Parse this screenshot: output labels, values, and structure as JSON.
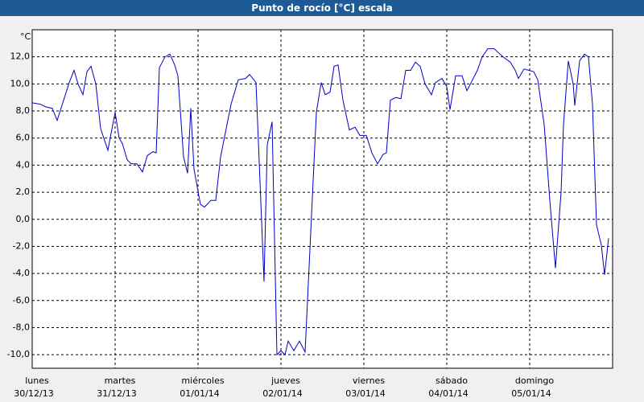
{
  "chart_data": {
    "type": "line",
    "title": "Punto de rocío [°C] escala",
    "y_unit": "°C",
    "color": "#0000c8",
    "grid": true,
    "xlim": [
      0,
      7
    ],
    "xticks": [
      {
        "value": 0,
        "label": [
          "lunes",
          "30/12/13"
        ]
      },
      {
        "value": 1,
        "label": [
          "martes",
          "31/12/13"
        ]
      },
      {
        "value": 2,
        "label": [
          "miércoles",
          "01/01/14"
        ]
      },
      {
        "value": 3,
        "label": [
          "jueves",
          "02/01/14"
        ]
      },
      {
        "value": 4,
        "label": [
          "viernes",
          "03/01/14"
        ]
      },
      {
        "value": 5,
        "label": [
          "sábado",
          "04/01/14"
        ]
      },
      {
        "value": 6,
        "label": [
          "domingo",
          "05/01/14"
        ]
      }
    ],
    "ylim": [
      -11,
      14
    ],
    "yticks": [
      {
        "value": -10,
        "label": "-10,0"
      },
      {
        "value": -8,
        "label": "-8,0"
      },
      {
        "value": -6,
        "label": "-6,0"
      },
      {
        "value": -4,
        "label": "-4,0"
      },
      {
        "value": -2,
        "label": "-2,0"
      },
      {
        "value": 0,
        "label": "0,0"
      },
      {
        "value": 2,
        "label": "2,0"
      },
      {
        "value": 4,
        "label": "4,0"
      },
      {
        "value": 6,
        "label": "6,0"
      },
      {
        "value": 8,
        "label": "8,0"
      },
      {
        "value": 10,
        "label": "10,0"
      },
      {
        "value": 12,
        "label": "12,0"
      }
    ],
    "x": [
      0,
      0.097,
      0.165,
      0.243,
      0.301,
      0.369,
      0.447,
      0.505,
      0.553,
      0.612,
      0.66,
      0.709,
      0.767,
      0.825,
      0.913,
      1.0,
      1.049,
      1.087,
      1.146,
      1.194,
      1.262,
      1.33,
      1.388,
      1.456,
      1.495,
      1.534,
      1.602,
      1.66,
      1.718,
      1.757,
      1.825,
      1.874,
      1.913,
      1.951,
      2.029,
      2.078,
      2.155,
      2.214,
      2.272,
      2.398,
      2.485,
      2.573,
      2.621,
      2.699,
      2.796,
      2.835,
      2.893,
      2.951,
      3.0,
      3.049,
      3.087,
      3.155,
      3.223,
      3.291,
      3.427,
      3.485,
      3.534,
      3.592,
      3.641,
      3.689,
      3.748,
      3.825,
      3.893,
      3.951,
      4.029,
      4.097,
      4.165,
      4.233,
      4.272,
      4.32,
      4.388,
      4.447,
      4.505,
      4.563,
      4.621,
      4.68,
      4.738,
      4.816,
      4.864,
      4.942,
      5.0,
      5.039,
      5.107,
      5.184,
      5.243,
      5.311,
      5.369,
      5.427,
      5.495,
      5.573,
      5.641,
      5.699,
      5.767,
      5.825,
      5.864,
      5.932,
      5.99,
      6.049,
      6.097,
      6.175,
      6.243,
      6.311,
      6.379,
      6.408,
      6.466,
      6.524,
      6.544,
      6.602,
      6.66,
      6.709,
      6.757,
      6.806,
      6.864,
      6.903,
      6.951
    ],
    "values": [
      8.6,
      8.5,
      8.3,
      8.2,
      7.3,
      8.6,
      10.1,
      11.0,
      10.0,
      9.2,
      10.9,
      11.3,
      10.0,
      6.7,
      5.1,
      7.9,
      6.0,
      5.6,
      4.4,
      4.1,
      4.1,
      3.5,
      4.7,
      5.0,
      4.9,
      11.2,
      12.0,
      12.2,
      11.4,
      10.6,
      4.6,
      3.4,
      8.2,
      3.7,
      1.1,
      0.9,
      1.4,
      1.4,
      4.6,
      8.5,
      10.3,
      10.4,
      10.7,
      10.1,
      -4.6,
      5.5,
      7.2,
      -10.0,
      -9.7,
      -10.0,
      -9.0,
      -9.7,
      -9.0,
      -9.8,
      7.9,
      10.1,
      9.2,
      9.4,
      11.3,
      11.4,
      8.8,
      6.6,
      6.8,
      6.2,
      6.2,
      4.9,
      4.1,
      4.8,
      4.9,
      8.8,
      9.0,
      8.9,
      11.0,
      11.0,
      11.6,
      11.3,
      10.0,
      9.2,
      10.1,
      10.4,
      9.8,
      8.1,
      10.6,
      10.6,
      9.5,
      10.3,
      11.0,
      12.0,
      12.6,
      12.6,
      12.2,
      11.9,
      11.6,
      11.0,
      10.4,
      11.1,
      11.0,
      10.9,
      10.3,
      7.0,
      1.4,
      -3.6,
      2.0,
      7.0,
      11.7,
      10.0,
      8.4,
      11.7,
      12.2,
      12.0,
      8.5,
      -0.4,
      -1.9,
      -4.1,
      -1.4
    ]
  }
}
